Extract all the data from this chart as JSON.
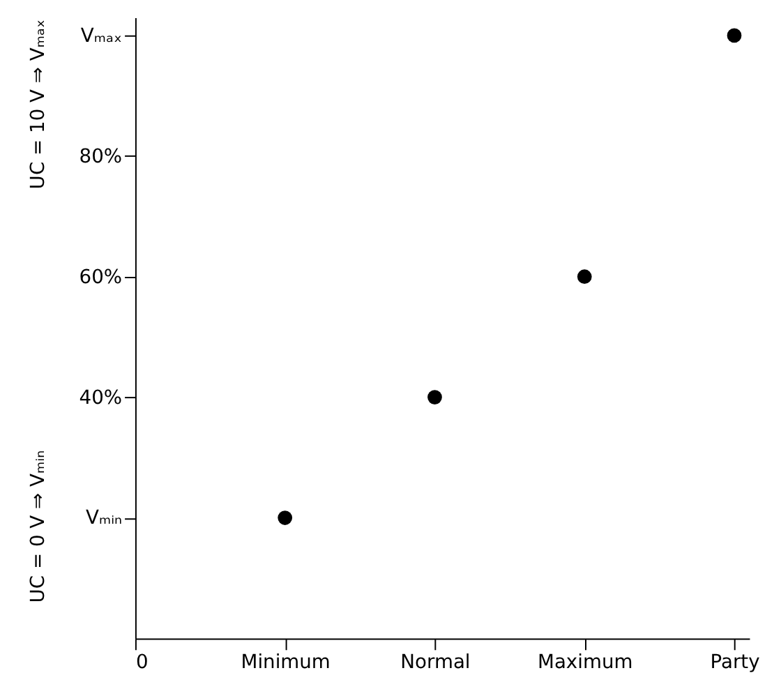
{
  "chart_data": {
    "type": "scatter",
    "categories": [
      "0",
      "Minimum",
      "Normal",
      "Maximum",
      "Party"
    ],
    "values": [
      null,
      20,
      40,
      60,
      100
    ],
    "color": "#000000",
    "marker": "circle",
    "ylim": [
      0,
      103
    ],
    "yticks": [
      {
        "value": 20,
        "label": "Vₘᵢₙ"
      },
      {
        "value": 40,
        "label": "40%"
      },
      {
        "value": 60,
        "label": "60%"
      },
      {
        "value": 80,
        "label": "80%"
      },
      {
        "value": 100,
        "label": "Vₘₐₓ"
      }
    ],
    "annotations": [
      "UC = 0 V ⇒ Vₘᵢₙ",
      "UC = 10 V ⇒ Vₘₐₓ"
    ],
    "grid": false
  }
}
